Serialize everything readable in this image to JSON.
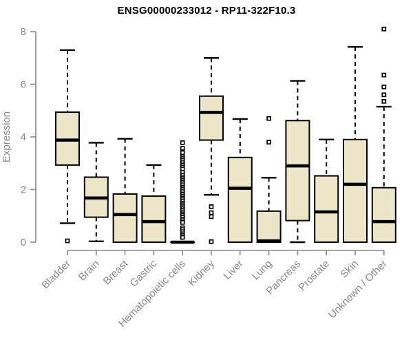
{
  "chart_data": {
    "type": "boxplot",
    "title": "ENSG00000233012 - RP11-322F10.3",
    "xlabel": "",
    "ylabel": "Expression",
    "ylim": [
      0,
      8
    ],
    "yticks": [
      0,
      2,
      4,
      6,
      8
    ],
    "grid": false,
    "legend": "none",
    "categories": [
      "Bladder",
      "Brain",
      "Breast",
      "Gastric",
      "Hematopoietic cells",
      "Kidney",
      "Liver",
      "Lung",
      "Pancreas",
      "Prostate",
      "Skin",
      "Unknown / Other"
    ],
    "boxes": [
      {
        "category": "Bladder",
        "whisker_low": 0.72,
        "q1": 2.93,
        "median": 3.88,
        "q3": 4.94,
        "whisker_high": 7.3,
        "outliers": [
          0.05
        ]
      },
      {
        "category": "Brain",
        "whisker_low": 0.03,
        "q1": 0.95,
        "median": 1.68,
        "q3": 2.47,
        "whisker_high": 3.78,
        "outliers": []
      },
      {
        "category": "Breast",
        "whisker_low": 0,
        "q1": 0,
        "median": 1.05,
        "q3": 1.83,
        "whisker_high": 3.93,
        "outliers": []
      },
      {
        "category": "Gastric",
        "whisker_low": 0,
        "q1": 0,
        "median": 0.78,
        "q3": 1.75,
        "whisker_high": 2.93,
        "outliers": []
      },
      {
        "category": "Hematopoietic cells",
        "whisker_low": 0,
        "q1": 0,
        "median": 0,
        "q3": 0,
        "whisker_high": 0,
        "outliers": [
          3.78,
          3.57,
          3.4,
          3.26,
          3.19,
          3.12,
          3.05,
          2.98,
          2.92,
          2.85,
          2.78,
          2.65,
          2.55,
          2.48,
          2.42,
          2.35,
          2.28,
          2.22,
          2.15,
          2.08,
          2.02,
          1.95,
          1.88,
          1.82,
          1.75,
          1.68,
          1.62,
          1.55,
          1.48,
          1.42,
          1.35,
          1.28,
          1.22,
          1.15,
          1.08,
          1.02,
          0.95,
          0.88,
          0.82,
          0.75,
          0.55,
          0.48,
          0.4,
          0.32,
          0.25,
          0.18
        ]
      },
      {
        "category": "Kidney",
        "whisker_low": 1.8,
        "q1": 3.88,
        "median": 4.93,
        "q3": 5.55,
        "whisker_high": 7.0,
        "outliers": [
          1.35,
          1.12,
          0.97,
          0.02
        ]
      },
      {
        "category": "Liver",
        "whisker_low": 0,
        "q1": 0,
        "median": 2.05,
        "q3": 3.22,
        "whisker_high": 4.68,
        "outliers": []
      },
      {
        "category": "Lung",
        "whisker_low": 0,
        "q1": 0,
        "median": 0.05,
        "q3": 1.18,
        "whisker_high": 2.45,
        "outliers": [
          4.7,
          3.8
        ]
      },
      {
        "category": "Pancreas",
        "whisker_low": 0,
        "q1": 0.82,
        "median": 2.9,
        "q3": 4.62,
        "whisker_high": 6.13,
        "outliers": []
      },
      {
        "category": "Prostate",
        "whisker_low": 0,
        "q1": 0,
        "median": 1.15,
        "q3": 2.52,
        "whisker_high": 3.9,
        "outliers": []
      },
      {
        "category": "Skin",
        "whisker_low": 0,
        "q1": 0,
        "median": 2.2,
        "q3": 3.9,
        "whisker_high": 7.42,
        "outliers": []
      },
      {
        "category": "Unknown / Other",
        "whisker_low": 0,
        "q1": 0,
        "median": 0.78,
        "q3": 2.07,
        "whisker_high": 5.15,
        "outliers": [
          8.1,
          6.35,
          5.9,
          5.6,
          5.35
        ]
      }
    ]
  },
  "style": {
    "box_fill": "#ece5c8",
    "box_stroke": "#000000",
    "median_color": "#000000",
    "axis_color": "#888888",
    "label_color": "#888888",
    "title_color": "#000000",
    "background": "#ffffff"
  }
}
